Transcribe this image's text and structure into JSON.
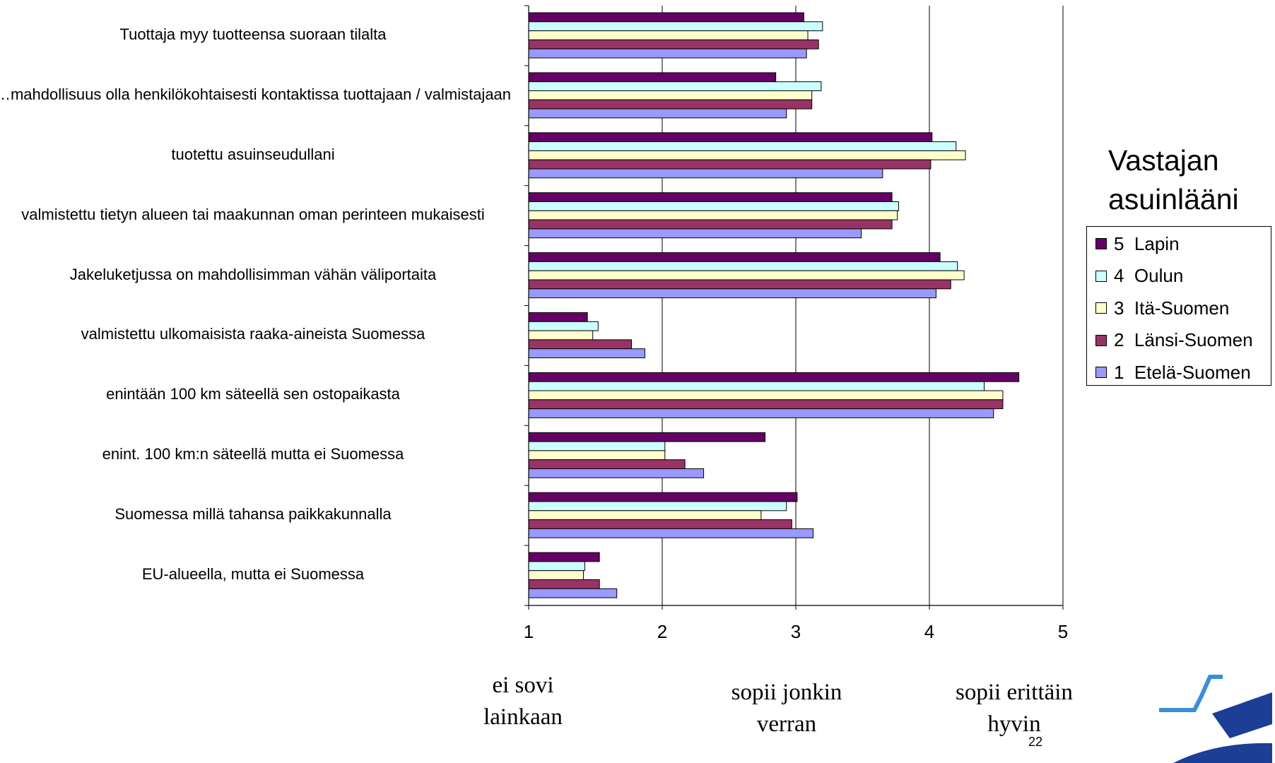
{
  "chart_data": {
    "type": "bar",
    "orientation": "horizontal",
    "categories": [
      "Tuottaja myy tuotteensa suoraan tilalta",
      "…mahdollisuus olla henkilökohtaisesti kontaktissa tuottajaan / valmistajaan",
      "tuotettu asuinseudullani",
      "valmistettu tietyn alueen tai maakunnan oman perinteen mukaisesti",
      "Jakeluketjussa on mahdollisimman vähän väliportaita",
      "valmistettu ulkomaisista raaka-aineista Suomessa",
      "enintään 100 km säteellä sen ostopaikasta",
      "enint. 100 km:n säteellä mutta ei Suomessa",
      "Suomessa millä tahansa paikkakunnalla",
      "EU-alueella, mutta ei Suomessa"
    ],
    "series": [
      {
        "name": "5  Lapin",
        "color": "#660066",
        "values": [
          3.06,
          2.85,
          4.02,
          3.72,
          4.08,
          1.44,
          4.67,
          2.77,
          3.01,
          1.53
        ]
      },
      {
        "name": "4  Oulun",
        "color": "#ccffff",
        "values": [
          3.2,
          3.19,
          4.2,
          3.77,
          4.21,
          1.52,
          4.41,
          2.02,
          2.93,
          1.42
        ]
      },
      {
        "name": "3  Itä-Suomen",
        "color": "#ffffcc",
        "values": [
          3.09,
          3.12,
          4.27,
          3.76,
          4.26,
          1.48,
          4.55,
          2.02,
          2.74,
          1.41
        ]
      },
      {
        "name": "2  Länsi-Suomen",
        "color": "#993366",
        "values": [
          3.17,
          3.12,
          4.01,
          3.72,
          4.16,
          1.77,
          4.55,
          2.17,
          2.97,
          1.53
        ]
      },
      {
        "name": "1  Etelä-Suomen",
        "color": "#9999ff",
        "values": [
          3.08,
          2.93,
          3.65,
          3.49,
          4.05,
          1.87,
          4.48,
          2.31,
          3.13,
          1.66
        ]
      }
    ],
    "xlim": [
      1,
      5
    ],
    "xticks": [
      "1",
      "2",
      "3",
      "4",
      "5"
    ],
    "grid": true,
    "legend_title": "Vastajan asuinlääni",
    "legend_position": "right",
    "scale_notes": [
      {
        "value": 1,
        "text": "ei sovi lainkaan"
      },
      {
        "value": 3,
        "text": "sopii jonkin verran"
      },
      {
        "value": 4.7,
        "text": "sopii erittäin hyvin"
      }
    ],
    "page_number": "22"
  }
}
